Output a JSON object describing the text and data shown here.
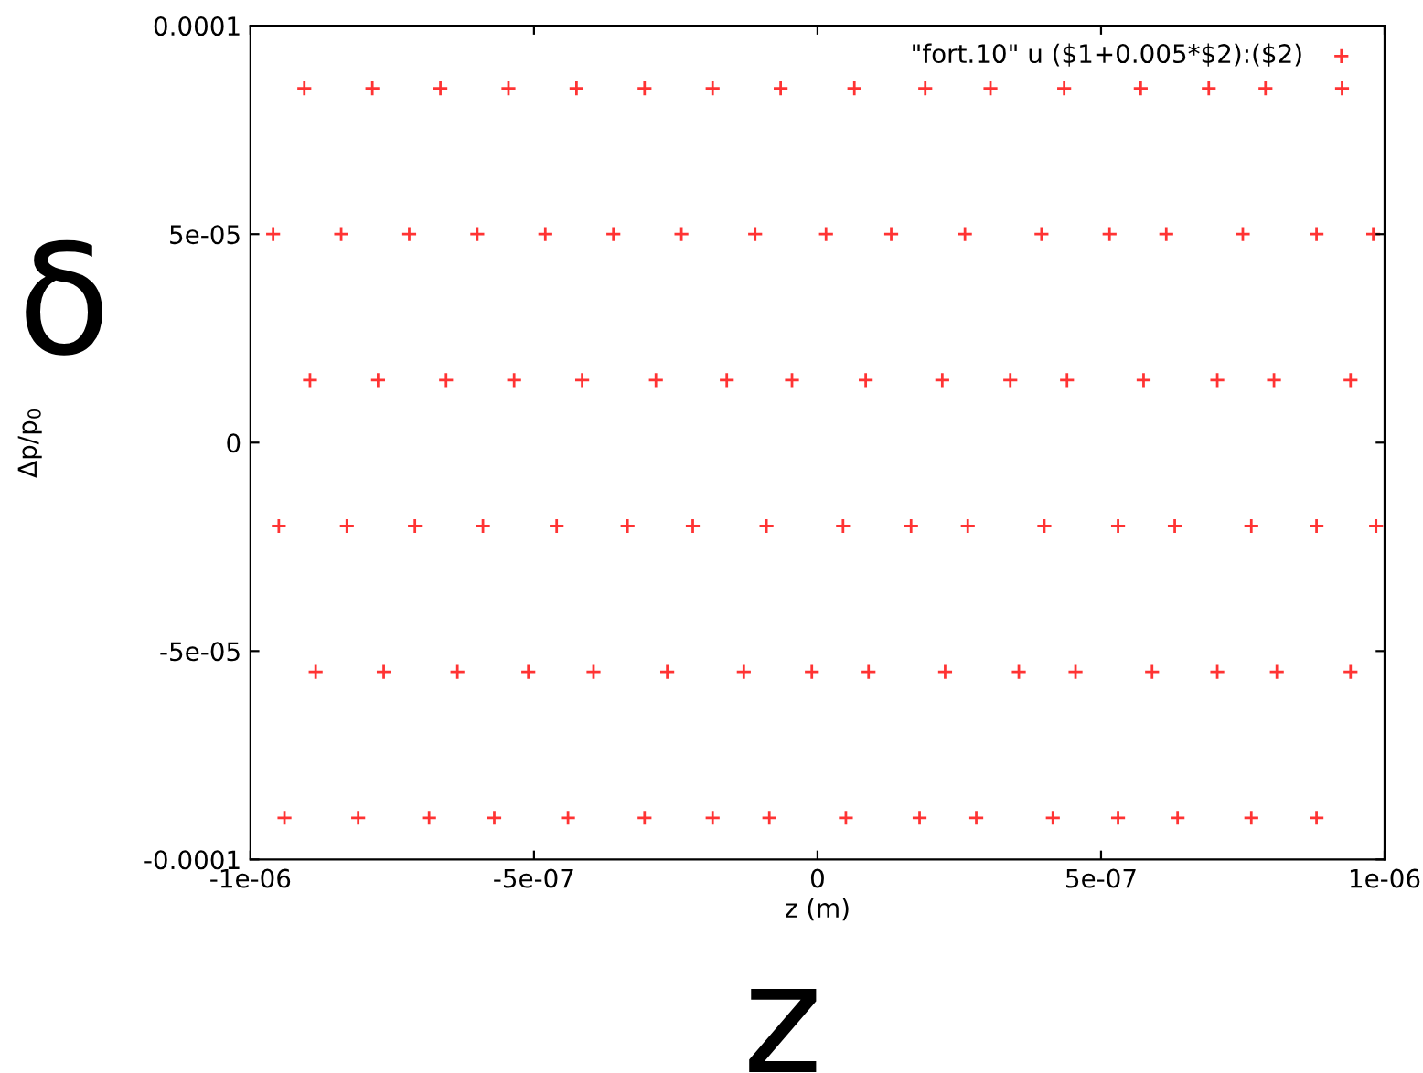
{
  "chart_data": {
    "type": "scatter",
    "xlabel": "z (m)",
    "ylabel": "Δp/p$_{0}$",
    "annotations": [
      "δ",
      "z"
    ],
    "xlim": [
      -1e-06,
      1e-06
    ],
    "xticks": [
      -1e-06,
      -5e-07,
      0,
      5e-07,
      1e-06
    ],
    "ylim": [
      -0.0001,
      0.0001
    ],
    "yticks": [
      -0.0001,
      -5e-05,
      0,
      5e-05,
      0.0001
    ],
    "grid": false,
    "legend": "top right",
    "marker": "cross",
    "series": [
      {
        "name": "\"fort.10\" u ($1+0.005*$2):($2)",
        "color": "#ff0000",
        "x": [
          -9.05e-07,
          -9.6e-07,
          -7.85e-07,
          -8.4e-07,
          -6.65e-07,
          -8.95e-07,
          -7.2e-07,
          -5.45e-07,
          -9.5e-07,
          -7.75e-07,
          -6e-07,
          -4.25e-07,
          -8.3e-07,
          -6.55e-07,
          -4.8e-07,
          -3.05e-07,
          -8.85e-07,
          -7.1e-07,
          -5.35e-07,
          -3.6e-07,
          -1.85e-07,
          -9.4e-07,
          -7.65e-07,
          -5.9e-07,
          -4.15e-07,
          -2.4e-07,
          -6.5e-08,
          -8.1e-07,
          -6.35e-07,
          -4.6e-07,
          -2.85e-07,
          -1.1e-07,
          6.5e-08,
          -6.85e-07,
          -5.1e-07,
          -3.35e-07,
          -1.6e-07,
          1.5e-08,
          1.9e-07,
          -5.7e-07,
          -3.95e-07,
          -2.2e-07,
          -4.5e-08,
          1.3e-07,
          3.05e-07,
          -4.4e-07,
          -2.65e-07,
          -9e-08,
          8.5e-08,
          2.6e-07,
          4.35e-07,
          -3.05e-07,
          -1.3e-07,
          4.5e-08,
          2.2e-07,
          3.95e-07,
          5.7e-07,
          -1.85e-07,
          -1e-08,
          1.65e-07,
          3.4e-07,
          5.15e-07,
          6.9e-07,
          -8.5e-08,
          9e-08,
          2.65e-07,
          4.4e-07,
          6.15e-07,
          7.9e-07,
          5e-08,
          2.25e-07,
          4e-07,
          5.75e-07,
          7.5e-07,
          9.25e-07,
          1.8e-07,
          3.55e-07,
          5.3e-07,
          7.05e-07,
          8.8e-07,
          2.8e-07,
          4.55e-07,
          6.3e-07,
          8.05e-07,
          9.8e-07,
          4.15e-07,
          5.9e-07,
          7.65e-07,
          9.4e-07,
          5.3e-07,
          7.05e-07,
          8.8e-07,
          6.35e-07,
          8.1e-07,
          9.85e-07,
          7.65e-07,
          9.4e-07,
          8.8e-07
        ],
        "values": [
          8.5e-05,
          5e-05,
          8.5e-05,
          5e-05,
          8.5e-05,
          1.5e-05,
          5e-05,
          8.5e-05,
          -2e-05,
          1.5e-05,
          5e-05,
          8.5e-05,
          -2e-05,
          1.5e-05,
          5e-05,
          8.5e-05,
          -5.5e-05,
          -2e-05,
          1.5e-05,
          5e-05,
          8.5e-05,
          -9e-05,
          -5.5e-05,
          -2e-05,
          1.5e-05,
          5e-05,
          8.5e-05,
          -9e-05,
          -5.5e-05,
          -2e-05,
          1.5e-05,
          5e-05,
          8.5e-05,
          -9e-05,
          -5.5e-05,
          -2e-05,
          1.5e-05,
          5e-05,
          8.5e-05,
          -9e-05,
          -5.5e-05,
          -2e-05,
          1.5e-05,
          5e-05,
          8.5e-05,
          -9e-05,
          -5.5e-05,
          -2e-05,
          1.5e-05,
          5e-05,
          8.5e-05,
          -9e-05,
          -5.5e-05,
          -2e-05,
          1.5e-05,
          5e-05,
          8.5e-05,
          -9e-05,
          -5.5e-05,
          -2e-05,
          1.5e-05,
          5e-05,
          8.5e-05,
          -9e-05,
          -5.5e-05,
          -2e-05,
          1.5e-05,
          5e-05,
          8.5e-05,
          -9e-05,
          -5.5e-05,
          -2e-05,
          1.5e-05,
          5e-05,
          8.5e-05,
          -9e-05,
          -5.5e-05,
          -2e-05,
          1.5e-05,
          5e-05,
          -9e-05,
          -5.5e-05,
          -2e-05,
          1.5e-05,
          5e-05,
          -9e-05,
          -5.5e-05,
          -2e-05,
          1.5e-05,
          -9e-05,
          -5.5e-05,
          -2e-05,
          -9e-05,
          -5.5e-05,
          -2e-05,
          -9e-05,
          -5.5e-05,
          -9e-05
        ]
      }
    ]
  }
}
